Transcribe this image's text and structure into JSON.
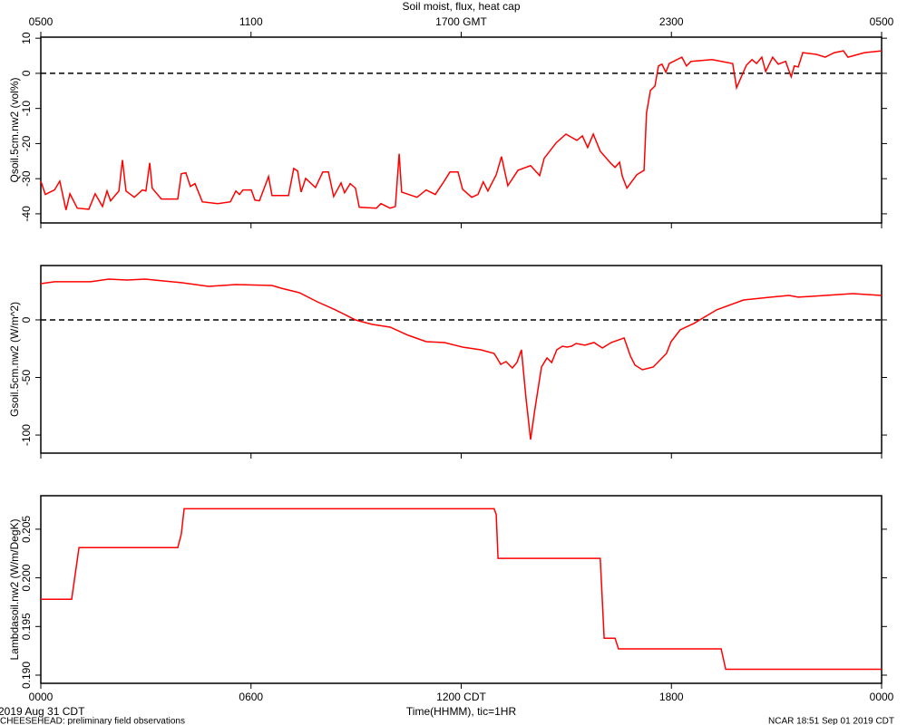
{
  "footer": {
    "date": "2019 Aug 31 CDT",
    "project": "CHEESEHEAD: preliminary field observations",
    "stamp": "NCAR 18:51 Sep 01 2019 CDT"
  },
  "chart_data": [
    {
      "type": "line",
      "title": "Soil moist, flux, heat cap",
      "ylabel": "Qsoil.5cm.nw2 (vol%)",
      "color": "#ff0000",
      "xlim": [
        0,
        24
      ],
      "x2ticks": [
        {
          "value": 0,
          "label": "0500"
        },
        {
          "value": 6,
          "label": "1100"
        },
        {
          "value": 12,
          "label": "1700 GMT"
        },
        {
          "value": 18,
          "label": "2300"
        },
        {
          "value": 24,
          "label": "0500"
        }
      ],
      "ylim": [
        -42.6,
        10.3
      ],
      "yticks": [
        10,
        0,
        -10,
        -20,
        -30,
        -40
      ],
      "reference_line": 0,
      "x": [
        0.0,
        0.13,
        0.39,
        0.54,
        0.72,
        0.83,
        1.04,
        1.37,
        1.55,
        1.76,
        1.89,
        1.99,
        2.23,
        2.33,
        2.43,
        2.67,
        2.9,
        3.0,
        3.11,
        3.18,
        3.44,
        3.91,
        4.01,
        4.14,
        4.27,
        4.4,
        4.61,
        5.05,
        5.41,
        5.57,
        5.67,
        5.77,
        6.01,
        6.11,
        6.24,
        6.5,
        6.6,
        7.07,
        7.22,
        7.33,
        7.43,
        7.56,
        7.84,
        8.05,
        8.21,
        8.36,
        8.57,
        8.67,
        8.83,
        8.98,
        9.09,
        9.58,
        9.71,
        9.97,
        10.12,
        10.23,
        10.3,
        10.74,
        11.0,
        11.26,
        11.47,
        11.68,
        11.91,
        12.04,
        12.3,
        12.48,
        12.63,
        12.76,
        13.0,
        13.15,
        13.33,
        13.62,
        13.98,
        14.24,
        14.37,
        14.71,
        14.99,
        15.3,
        15.46,
        15.61,
        15.77,
        15.97,
        16.26,
        16.39,
        16.52,
        16.6,
        16.73,
        17.01,
        17.22,
        17.29,
        17.4,
        17.53,
        17.63,
        17.73,
        17.84,
        17.94,
        18.3,
        18.43,
        18.56,
        19.16,
        19.75,
        19.86,
        20.14,
        20.3,
        20.43,
        20.58,
        20.69,
        20.89,
        21.05,
        21.26,
        21.42,
        21.51,
        21.62,
        21.75,
        22.14,
        22.39,
        22.65,
        22.91,
        23.04,
        23.51,
        24.0
      ],
      "values": [
        -30.7,
        -34.5,
        -33.2,
        -30.7,
        -38.9,
        -34.3,
        -38.4,
        -38.7,
        -34.3,
        -37.9,
        -33.5,
        -36.3,
        -33.5,
        -24.7,
        -33.5,
        -35.3,
        -33.2,
        -33.5,
        -25.5,
        -32.7,
        -35.8,
        -35.8,
        -28.6,
        -28.3,
        -32.2,
        -31.4,
        -36.6,
        -37.1,
        -36.6,
        -33.5,
        -34.5,
        -33.2,
        -33.2,
        -36.1,
        -36.3,
        -29.4,
        -34.8,
        -34.8,
        -27.1,
        -27.8,
        -33.8,
        -29.9,
        -32.5,
        -28.1,
        -28.1,
        -35.1,
        -31.2,
        -34.0,
        -31.4,
        -32.7,
        -38.1,
        -38.4,
        -37.1,
        -38.4,
        -37.9,
        -22.9,
        -33.8,
        -35.3,
        -33.2,
        -34.5,
        -31.4,
        -28.1,
        -28.1,
        -33.0,
        -35.3,
        -34.5,
        -30.9,
        -33.5,
        -28.9,
        -23.7,
        -32.0,
        -27.6,
        -26.3,
        -29.1,
        -24.2,
        -19.8,
        -17.3,
        -19.1,
        -17.8,
        -21.1,
        -17.3,
        -22.2,
        -25.5,
        -26.8,
        -25.3,
        -29.4,
        -32.7,
        -28.9,
        -27.6,
        -11.3,
        -4.9,
        -3.6,
        2.1,
        2.6,
        0.3,
        2.8,
        4.6,
        2.1,
        3.4,
        3.9,
        2.8,
        -4.1,
        2.3,
        3.9,
        2.8,
        4.6,
        0.5,
        4.6,
        2.6,
        3.4,
        -1.0,
        2.1,
        1.8,
        5.9,
        5.4,
        4.6,
        5.9,
        6.4,
        4.6,
        5.9,
        6.4
      ]
    },
    {
      "type": "line",
      "ylabel": "Gsoil.5cm.nw2 (W/m^2)",
      "color": "#ff0000",
      "xlim": [
        0,
        24
      ],
      "ylim": [
        -115.7,
        47.2
      ],
      "yticks": [
        0,
        -50,
        -100
      ],
      "reference_line": 0,
      "x": [
        0,
        0.39,
        1.42,
        1.94,
        2.46,
        2.98,
        3.5,
        4.01,
        4.79,
        5.57,
        6.6,
        6.86,
        7.38,
        7.89,
        8.41,
        8.98,
        9.45,
        9.97,
        10.49,
        11.0,
        11.52,
        12.04,
        12.56,
        12.94,
        13.13,
        13.28,
        13.46,
        13.59,
        13.72,
        13.85,
        13.98,
        14.11,
        14.29,
        14.45,
        14.58,
        14.73,
        14.89,
        15.02,
        15.15,
        15.28,
        15.53,
        15.79,
        16.03,
        16.28,
        16.65,
        16.83,
        16.96,
        17.17,
        17.48,
        17.86,
        17.99,
        18.25,
        18.64,
        19.29,
        20.06,
        20.84,
        21.36,
        21.62,
        22.39,
        23.17,
        24.0
      ],
      "values": [
        31.5,
        33.1,
        33.1,
        35.4,
        34.6,
        35.4,
        33.8,
        32.3,
        29.1,
        30.7,
        29.9,
        27.5,
        23.6,
        15.7,
        8.7,
        0,
        -3.9,
        -6.3,
        -13.4,
        -18.9,
        -19.7,
        -23.6,
        -26.0,
        -29.1,
        -38.6,
        -36.2,
        -41.7,
        -37.0,
        -26.0,
        -68.5,
        -103.9,
        -76.3,
        -40.9,
        -33.1,
        -37.0,
        -26.0,
        -22.8,
        -23.6,
        -22.8,
        -20.5,
        -22.0,
        -19.7,
        -24.4,
        -19.7,
        -15.7,
        -31.5,
        -39.3,
        -43.3,
        -40.9,
        -29.1,
        -18.9,
        -8.7,
        -3.1,
        8.7,
        17.3,
        19.7,
        21.2,
        19.7,
        21.2,
        22.8,
        21.2
      ]
    },
    {
      "type": "line",
      "ylabel": "Lambdasoil.nw2 (W/m/DegK)",
      "color": "#ff0000",
      "xlabel": "Time(HHMM), tic=1HR",
      "xlim": [
        0,
        24
      ],
      "xticks": [
        {
          "value": 0,
          "label": "0000"
        },
        {
          "value": 6,
          "label": "0600"
        },
        {
          "value": 12,
          "label": "1200 CDT"
        },
        {
          "value": 18,
          "label": "1800"
        },
        {
          "value": 24,
          "label": "0000"
        }
      ],
      "ylim": [
        0.18916,
        0.20844
      ],
      "yticks": [
        {
          "value": 0.19,
          "label": "0.190"
        },
        0.195,
        {
          "value": 0.2,
          "label": "0.200"
        },
        0.205
      ],
      "x": [
        0,
        0.88,
        1.09,
        3.91,
        4.01,
        4.09,
        12.94,
        13.0,
        13.05,
        15.97,
        16.08,
        16.39,
        16.49,
        19.42,
        19.55,
        24
      ],
      "values": [
        0.1978,
        0.1978,
        0.2031,
        0.2031,
        0.2045,
        0.2071,
        0.2071,
        0.2065,
        0.202,
        0.202,
        0.1938,
        0.1938,
        0.1927,
        0.1927,
        0.1906,
        0.1906
      ]
    }
  ]
}
